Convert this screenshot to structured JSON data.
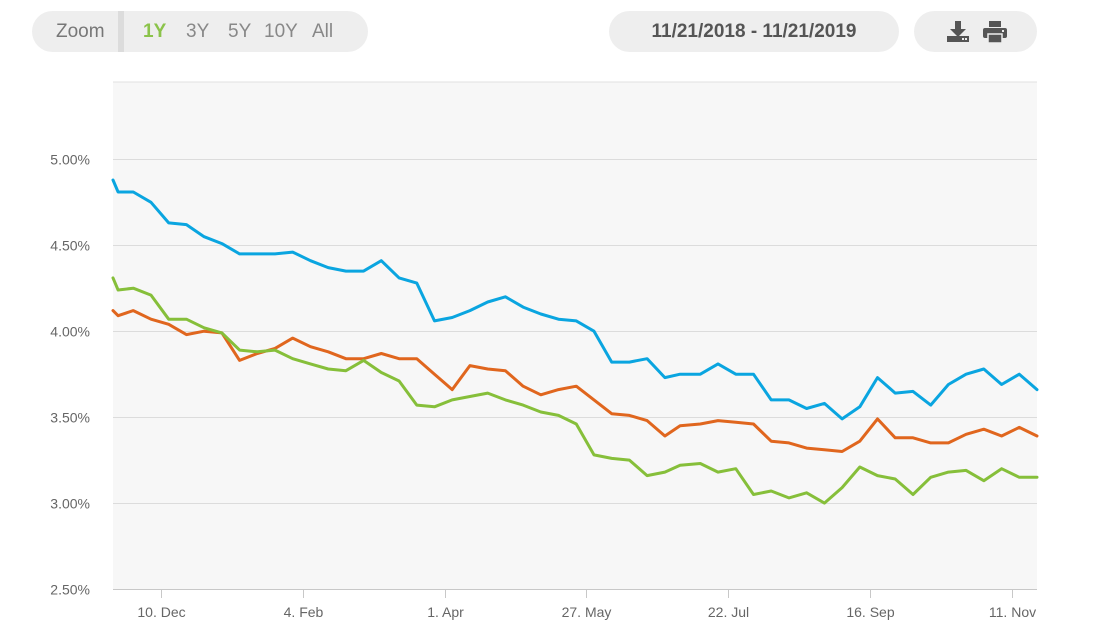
{
  "toolbar": {
    "zoom_label": "Zoom",
    "zoom_options": [
      "1Y",
      "3Y",
      "5Y",
      "10Y",
      "All"
    ],
    "active_zoom": "1Y",
    "date_range": "11/21/2018 - 11/21/2019",
    "icons": [
      "download-icon",
      "print-icon"
    ],
    "accent_color": "#8bc34a"
  },
  "chart_data": {
    "type": "line",
    "title": "",
    "xlabel": "",
    "ylabel": "",
    "ylim": [
      2.5,
      5.0
    ],
    "ylim_visible_top": 5.45,
    "yticks": [
      2.5,
      3.0,
      3.5,
      4.0,
      4.5,
      5.0
    ],
    "ytick_labels": [
      "2.50%",
      "3.00%",
      "3.50%",
      "4.00%",
      "4.50%",
      "5.00%"
    ],
    "xlim": [
      "2018-11-21",
      "2019-11-21"
    ],
    "xticks": [
      {
        "date": "2018-12-10",
        "label": "10. Dec"
      },
      {
        "date": "2019-02-04",
        "label": "4. Feb"
      },
      {
        "date": "2019-04-01",
        "label": "1. Apr"
      },
      {
        "date": "2019-05-27",
        "label": "27. May"
      },
      {
        "date": "2019-07-22",
        "label": "22. Jul"
      },
      {
        "date": "2019-09-16",
        "label": "16. Sep"
      },
      {
        "date": "2019-11-11",
        "label": "11. Nov"
      }
    ],
    "grid": true,
    "legend": "none",
    "x": [
      "2018-11-21",
      "2018-11-23",
      "2018-11-29",
      "2018-12-06",
      "2018-12-13",
      "2018-12-20",
      "2018-12-27",
      "2019-01-03",
      "2019-01-10",
      "2019-01-17",
      "2019-01-24",
      "2019-01-31",
      "2019-02-07",
      "2019-02-14",
      "2019-02-21",
      "2019-02-28",
      "2019-03-07",
      "2019-03-14",
      "2019-03-21",
      "2019-03-28",
      "2019-04-04",
      "2019-04-11",
      "2019-04-18",
      "2019-04-25",
      "2019-05-02",
      "2019-05-09",
      "2019-05-16",
      "2019-05-23",
      "2019-05-30",
      "2019-06-06",
      "2019-06-13",
      "2019-06-20",
      "2019-06-27",
      "2019-07-03",
      "2019-07-11",
      "2019-07-18",
      "2019-07-25",
      "2019-08-01",
      "2019-08-08",
      "2019-08-15",
      "2019-08-22",
      "2019-08-29",
      "2019-09-05",
      "2019-09-12",
      "2019-09-19",
      "2019-09-26",
      "2019-10-03",
      "2019-10-10",
      "2019-10-17",
      "2019-10-24",
      "2019-10-31",
      "2019-11-07",
      "2019-11-14",
      "2019-11-21"
    ],
    "series": [
      {
        "color": "#0aa5e0",
        "values": [
          4.88,
          4.81,
          4.81,
          4.75,
          4.63,
          4.62,
          4.55,
          4.51,
          4.45,
          4.45,
          4.45,
          4.46,
          4.41,
          4.37,
          4.35,
          4.35,
          4.41,
          4.31,
          4.28,
          4.06,
          4.08,
          4.12,
          4.17,
          4.2,
          4.14,
          4.1,
          4.07,
          4.06,
          4.0,
          3.82,
          3.82,
          3.84,
          3.73,
          3.75,
          3.75,
          3.81,
          3.75,
          3.75,
          3.6,
          3.6,
          3.55,
          3.58,
          3.49,
          3.56,
          3.73,
          3.64,
          3.65,
          3.57,
          3.69,
          3.75,
          3.78,
          3.69,
          3.75,
          3.66
        ]
      },
      {
        "color": "#e0661e",
        "values": [
          4.12,
          4.09,
          4.12,
          4.07,
          4.04,
          3.98,
          4.0,
          3.99,
          3.83,
          3.87,
          3.9,
          3.96,
          3.91,
          3.88,
          3.84,
          3.84,
          3.87,
          3.84,
          3.84,
          3.75,
          3.66,
          3.8,
          3.78,
          3.77,
          3.68,
          3.63,
          3.66,
          3.68,
          3.6,
          3.52,
          3.51,
          3.48,
          3.39,
          3.45,
          3.46,
          3.48,
          3.47,
          3.46,
          3.36,
          3.35,
          3.32,
          3.31,
          3.3,
          3.36,
          3.49,
          3.38,
          3.38,
          3.35,
          3.35,
          3.4,
          3.43,
          3.39,
          3.44,
          3.39
        ]
      },
      {
        "color": "#86bf3a",
        "values": [
          4.31,
          4.24,
          4.25,
          4.21,
          4.07,
          4.07,
          4.02,
          3.99,
          3.89,
          3.88,
          3.89,
          3.84,
          3.81,
          3.78,
          3.77,
          3.83,
          3.76,
          3.71,
          3.57,
          3.56,
          3.6,
          3.62,
          3.64,
          3.6,
          3.57,
          3.53,
          3.51,
          3.46,
          3.28,
          3.26,
          3.25,
          3.16,
          3.18,
          3.22,
          3.23,
          3.18,
          3.2,
          3.05,
          3.07,
          3.03,
          3.06,
          3.0,
          3.09,
          3.21,
          3.16,
          3.14,
          3.05,
          3.15,
          3.18,
          3.19,
          3.13,
          3.2,
          3.15,
          3.15
        ]
      }
    ]
  }
}
